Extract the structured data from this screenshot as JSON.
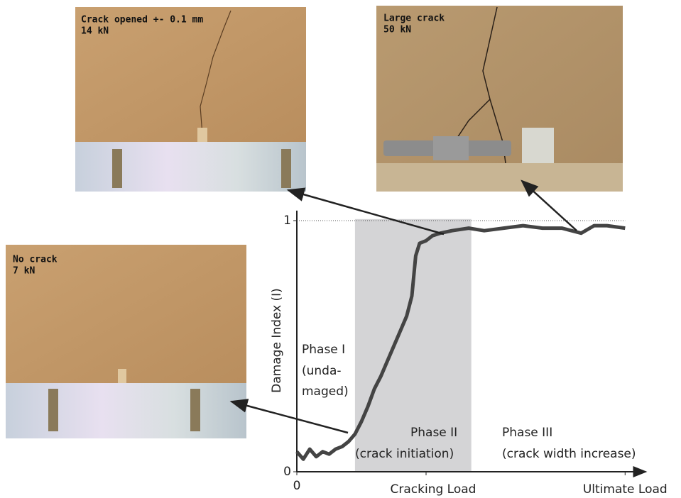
{
  "chart_data": {
    "type": "line",
    "ylabel": "Damage Index (I)",
    "xlim": [
      0,
      2.7
    ],
    "ylim": [
      0,
      1.04
    ],
    "xticks": [
      0,
      {
        "value": 1,
        "label": "Cracking Load"
      },
      {
        "value": 2.54,
        "label": "Ultimate Load"
      }
    ],
    "yticks": [
      0,
      1
    ],
    "grid_y": [
      1
    ],
    "shaded_region": [
      0.45,
      1.35
    ],
    "series": [
      {
        "name": null,
        "color": "#444444",
        "x": [
          0,
          0.05,
          0.1,
          0.15,
          0.2,
          0.25,
          0.3,
          0.35,
          0.4,
          0.45,
          0.5,
          0.55,
          0.6,
          0.65,
          0.7,
          0.75,
          0.8,
          0.85,
          0.89,
          0.92,
          0.95,
          1.0,
          1.05,
          1.11,
          1.2,
          1.33,
          1.45,
          1.6,
          1.75,
          1.9,
          2.05,
          2.2,
          2.3,
          2.4,
          2.54
        ],
        "y": [
          0.08,
          0.05,
          0.09,
          0.06,
          0.08,
          0.07,
          0.09,
          0.1,
          0.12,
          0.15,
          0.2,
          0.26,
          0.33,
          0.38,
          0.44,
          0.5,
          0.56,
          0.62,
          0.7,
          0.86,
          0.91,
          0.92,
          0.94,
          0.95,
          0.96,
          0.97,
          0.96,
          0.97,
          0.98,
          0.97,
          0.97,
          0.95,
          0.98,
          0.98,
          0.97
        ]
      }
    ],
    "annotations": [
      "Phase I",
      "(unda-",
      "maged)",
      "Phase II",
      "(crack initiation)",
      "Phase III",
      "(crack width increase)"
    ],
    "photos": [
      {
        "caption": [
          "Crack opened +- 0.1 mm",
          "14 kN"
        ]
      },
      {
        "caption": [
          "Large crack",
          "50 kN"
        ]
      },
      {
        "caption": [
          "No crack",
          "7 kN"
        ]
      }
    ]
  }
}
